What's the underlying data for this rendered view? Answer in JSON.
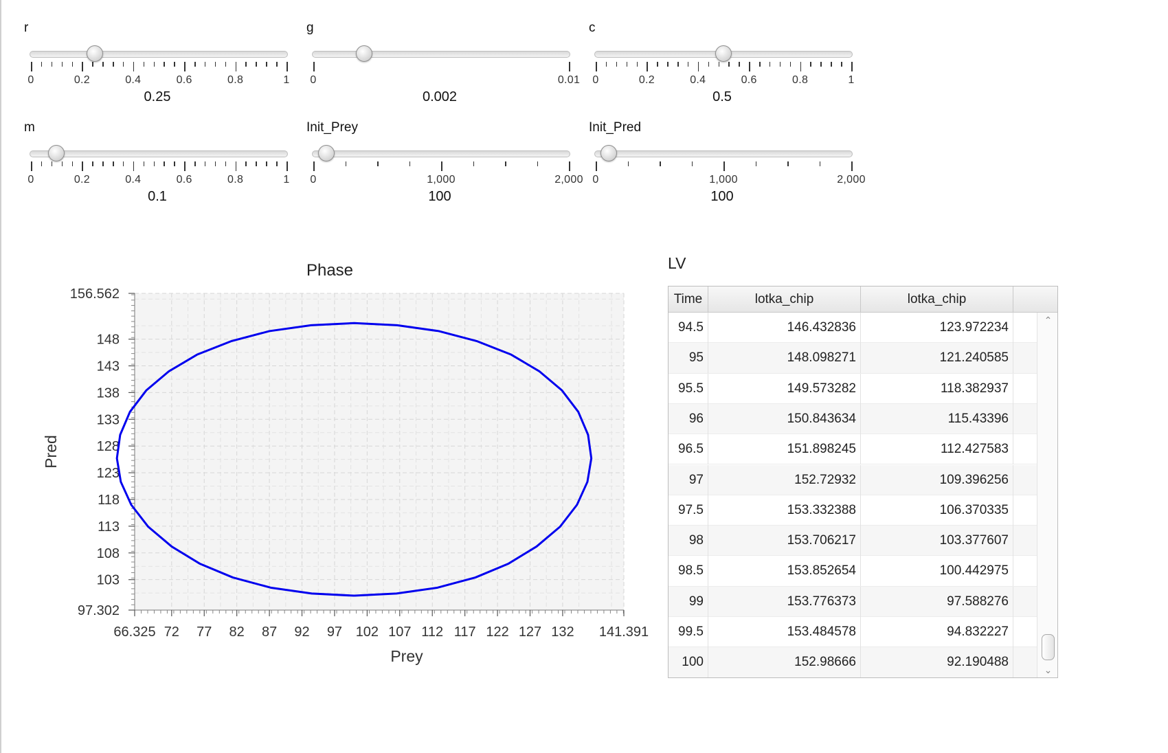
{
  "sliders": [
    {
      "id": "r",
      "label": "r",
      "value_text": "0.25",
      "value": 0.25,
      "min": 0,
      "max": 1,
      "tick_labels": [
        "0",
        "0.2",
        "0.4",
        "0.6",
        "0.8",
        "1"
      ]
    },
    {
      "id": "g",
      "label": "g",
      "value_text": "0.002",
      "value": 0.002,
      "min": 0,
      "max": 0.01,
      "tick_labels": [
        "0",
        "0.01"
      ]
    },
    {
      "id": "c",
      "label": "c",
      "value_text": "0.5",
      "value": 0.5,
      "min": 0,
      "max": 1,
      "tick_labels": [
        "0",
        "0.2",
        "0.4",
        "0.6",
        "0.8",
        "1"
      ]
    },
    {
      "id": "m",
      "label": "m",
      "value_text": "0.1",
      "value": 0.1,
      "min": 0,
      "max": 1,
      "tick_labels": [
        "0",
        "0.2",
        "0.4",
        "0.6",
        "0.8",
        "1"
      ]
    },
    {
      "id": "init_prey",
      "label": "Init_Prey",
      "value_text": "100",
      "value": 100,
      "min": 0,
      "max": 2000,
      "tick_labels": [
        "0",
        "1,000",
        "2,000"
      ]
    },
    {
      "id": "init_pred",
      "label": "Init_Pred",
      "value_text": "100",
      "value": 100,
      "min": 0,
      "max": 2000,
      "tick_labels": [
        "0",
        "1,000",
        "2,000"
      ]
    }
  ],
  "chart_data": {
    "type": "line",
    "title": "Phase",
    "xlabel": "Prey",
    "ylabel": "Pred",
    "xlim": [
      66.325,
      141.391
    ],
    "ylim": [
      97.302,
      156.562
    ],
    "x_ticks": [
      "66.325",
      "72",
      "77",
      "82",
      "87",
      "92",
      "97",
      "102",
      "107",
      "112",
      "117",
      "122",
      "127",
      "132",
      "141.391"
    ],
    "y_ticks": [
      "156.562",
      "148",
      "143",
      "138",
      "133",
      "128",
      "123",
      "118",
      "113",
      "108",
      "103",
      "97.302"
    ],
    "grid": true,
    "series": [
      {
        "color": "#0000ee",
        "x": [
          100.0,
          106.5,
          112.8,
          118.6,
          123.7,
          128.0,
          131.6,
          134.2,
          135.8,
          136.4,
          135.9,
          134.4,
          131.9,
          128.4,
          124.1,
          118.9,
          113.0,
          106.6,
          100.0,
          93.4,
          87.0,
          81.1,
          75.9,
          71.6,
          68.1,
          65.6,
          64.1,
          63.6,
          64.2,
          65.8,
          68.4,
          72.0,
          76.3,
          81.4,
          87.2,
          93.5,
          100.0
        ],
        "y": [
          100.0,
          100.4,
          101.5,
          103.4,
          106.0,
          109.2,
          112.9,
          117.0,
          121.3,
          125.7,
          130.1,
          134.4,
          138.4,
          142.0,
          145.1,
          147.6,
          149.5,
          150.6,
          151.0,
          150.6,
          149.5,
          147.6,
          145.1,
          142.0,
          138.4,
          134.4,
          130.1,
          125.7,
          121.3,
          117.0,
          112.9,
          109.2,
          106.0,
          103.4,
          101.5,
          100.4,
          100.0
        ]
      }
    ]
  },
  "table": {
    "title": "LV",
    "columns": [
      "Time",
      "lotka_chip",
      "lotka_chip"
    ],
    "rows": [
      [
        "94.5",
        "146.432836",
        "123.972234"
      ],
      [
        "95",
        "148.098271",
        "121.240585"
      ],
      [
        "95.5",
        "149.573282",
        "118.382937"
      ],
      [
        "96",
        "150.843634",
        "115.43396"
      ],
      [
        "96.5",
        "151.898245",
        "112.427583"
      ],
      [
        "97",
        "152.72932",
        "109.396256"
      ],
      [
        "97.5",
        "153.332388",
        "106.370335"
      ],
      [
        "98",
        "153.706217",
        "103.377607"
      ],
      [
        "98.5",
        "153.852654",
        "100.442975"
      ],
      [
        "99",
        "153.776373",
        "97.588276"
      ],
      [
        "99.5",
        "153.484578",
        "94.832227"
      ],
      [
        "100",
        "152.98666",
        "92.190488"
      ]
    ]
  },
  "icons": {
    "scroll_up": "chevron-up-icon",
    "scroll_down": "chevron-down-icon"
  }
}
